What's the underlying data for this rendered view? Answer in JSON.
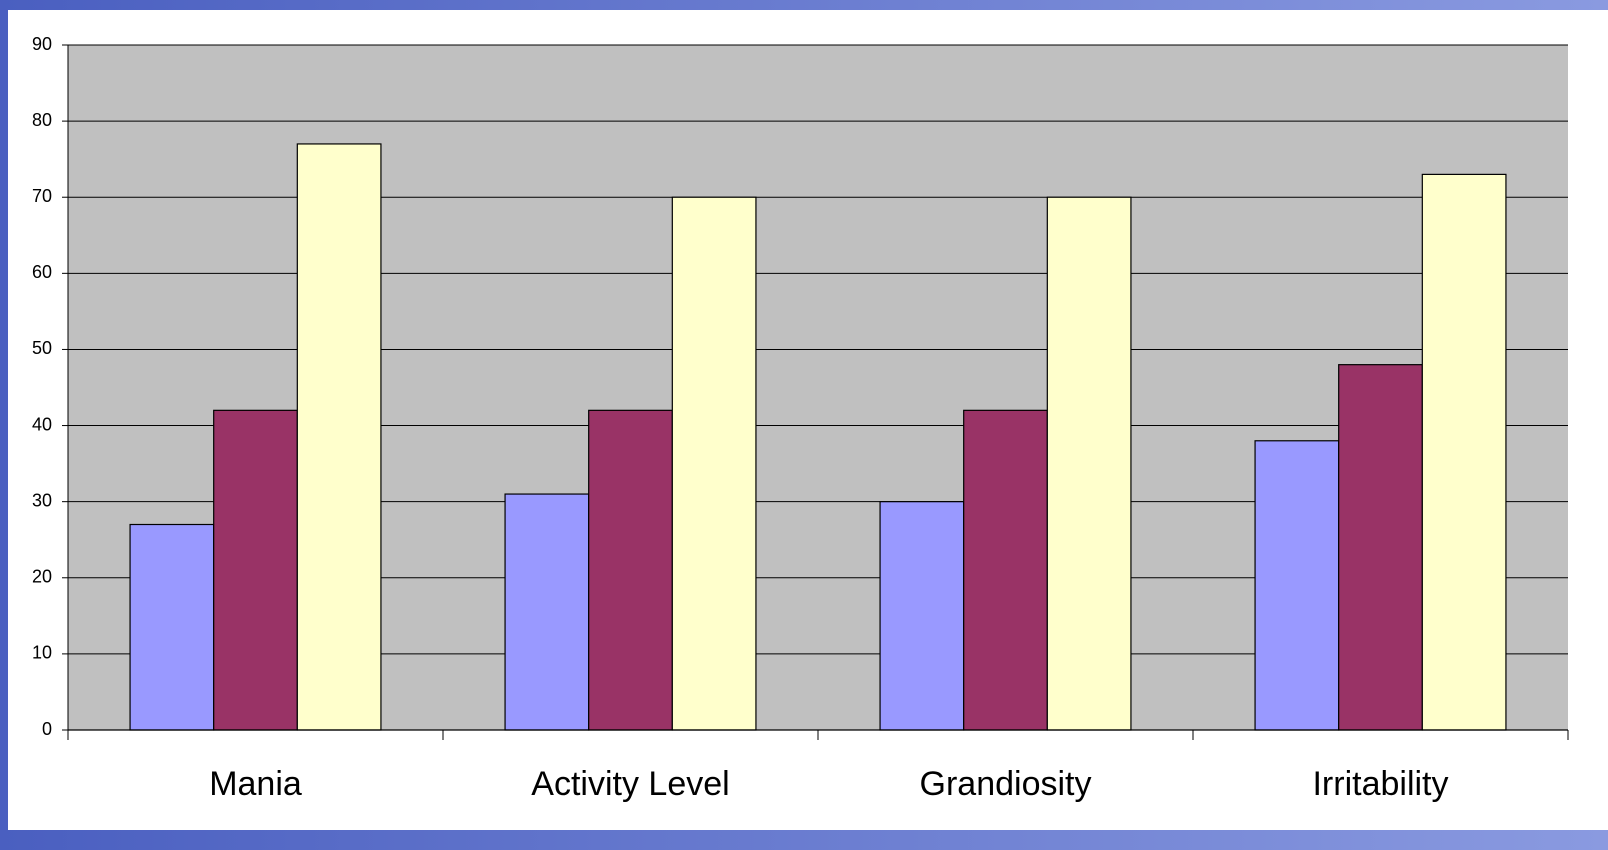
{
  "chart_data": {
    "type": "bar",
    "categories": [
      "Mania",
      "Activity Level",
      "Grandiosity",
      "Irritability"
    ],
    "series": [
      {
        "color": "#9999ff",
        "values": [
          27,
          31,
          30,
          38
        ]
      },
      {
        "color": "#993366",
        "values": [
          42,
          42,
          42,
          48
        ]
      },
      {
        "color": "#ffffcc",
        "values": [
          77,
          70,
          70,
          73
        ]
      }
    ],
    "ylim": [
      0,
      90
    ],
    "yticks": [
      0,
      10,
      20,
      30,
      40,
      50,
      60,
      70,
      80,
      90
    ],
    "grid": true,
    "plot_background": "#c0c0c0"
  }
}
